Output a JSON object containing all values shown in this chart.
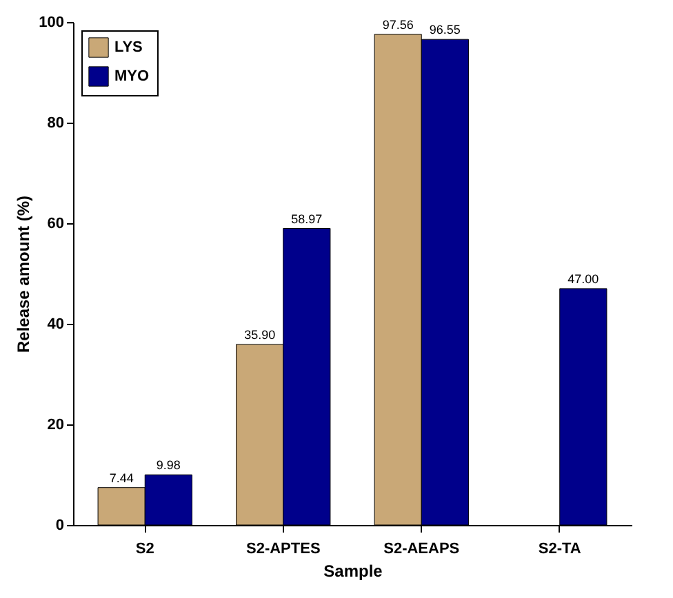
{
  "chart_data": {
    "type": "bar",
    "xlabel": "Sample",
    "ylabel": "Release amount (%)",
    "categories": [
      "S2",
      "S2-APTES",
      "S2-AEAPS",
      "S2-TA"
    ],
    "series": [
      {
        "name": "LYS",
        "color": "#c9a877",
        "values": [
          7.44,
          35.9,
          97.56,
          null
        ],
        "value_labels": [
          "7.44",
          "35.90",
          "97.56",
          null
        ]
      },
      {
        "name": "MYO",
        "color": "#00008b",
        "values": [
          9.98,
          58.97,
          96.55,
          47.0
        ],
        "value_labels": [
          "9.98",
          "58.97",
          "96.55",
          "47.00"
        ]
      }
    ],
    "ylim": [
      0,
      100
    ],
    "yticks": [
      0,
      20,
      40,
      60,
      80,
      100
    ],
    "grid": false,
    "legend": "top left"
  }
}
